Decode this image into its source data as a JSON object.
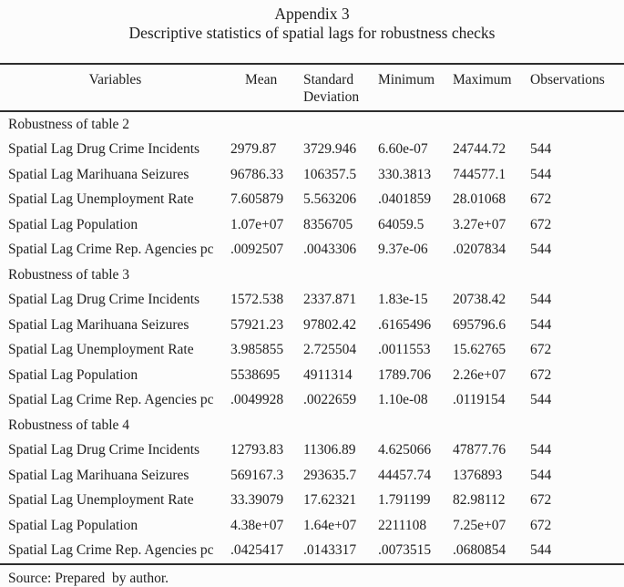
{
  "page": {
    "title": "Appendix 3",
    "subtitle": "Descriptive statistics of spatial lags for robustness checks",
    "source_note": "Source: Prepared  by author."
  },
  "table": {
    "columns": [
      "Variables",
      "Mean",
      "Standard Deviation",
      "Minimum",
      "Maximum",
      "Observations"
    ],
    "sections": [
      {
        "label": "Robustness of table 2",
        "rows": [
          {
            "variable": "Spatial Lag Drug Crime Incidents",
            "mean": "2979.87",
            "sd": "3729.946",
            "min": "6.60e-07",
            "max": "24744.72",
            "obs": "544"
          },
          {
            "variable": "Spatial Lag Marihuana Seizures",
            "mean": "96786.33",
            "sd": "106357.5",
            "min": "330.3813",
            "max": "744577.1",
            "obs": "544"
          },
          {
            "variable": "Spatial Lag Unemployment Rate",
            "mean": "7.605879",
            "sd": "5.563206",
            "min": ".0401859",
            "max": "28.01068",
            "obs": "672"
          },
          {
            "variable": "Spatial Lag Population",
            "mean": "1.07e+07",
            "sd": "8356705",
            "min": "64059.5",
            "max": "3.27e+07",
            "obs": "672"
          },
          {
            "variable": "Spatial Lag Crime Rep. Agencies pc",
            "mean": ".0092507",
            "sd": ".0043306",
            "min": "9.37e-06",
            "max": ".0207834",
            "obs": "544"
          }
        ]
      },
      {
        "label": "Robustness of table 3",
        "rows": [
          {
            "variable": "Spatial Lag Drug Crime Incidents",
            "mean": "1572.538",
            "sd": "2337.871",
            "min": "1.83e-15",
            "max": "20738.42",
            "obs": "544"
          },
          {
            "variable": "Spatial Lag Marihuana Seizures",
            "mean": "57921.23",
            "sd": "97802.42",
            "min": ".6165496",
            "max": "695796.6",
            "obs": "544"
          },
          {
            "variable": "Spatial Lag Unemployment Rate",
            "mean": "3.985855",
            "sd": "2.725504",
            "min": ".0011553",
            "max": "15.62765",
            "obs": "672"
          },
          {
            "variable": "Spatial Lag Population",
            "mean": "5538695",
            "sd": "4911314",
            "min": "1789.706",
            "max": "2.26e+07",
            "obs": "672"
          },
          {
            "variable": "Spatial Lag Crime Rep. Agencies pc",
            "mean": ".0049928",
            "sd": ".0022659",
            "min": "1.10e-08",
            "max": ".0119154",
            "obs": "544"
          }
        ]
      },
      {
        "label": "Robustness of table 4",
        "rows": [
          {
            "variable": "Spatial Lag Drug Crime Incidents",
            "mean": "12793.83",
            "sd": "11306.89",
            "min": "4.625066",
            "max": "47877.76",
            "obs": "544"
          },
          {
            "variable": "Spatial Lag Marihuana Seizures",
            "mean": "569167.3",
            "sd": "293635.7",
            "min": "44457.74",
            "max": "1376893",
            "obs": "544"
          },
          {
            "variable": "Spatial Lag Unemployment Rate",
            "mean": "33.39079",
            "sd": "17.62321",
            "min": "1.791199",
            "max": "82.98112",
            "obs": "672"
          },
          {
            "variable": "Spatial Lag Population",
            "mean": "4.38e+07",
            "sd": "1.64e+07",
            "min": "2211108",
            "max": "7.25e+07",
            "obs": "672"
          },
          {
            "variable": "Spatial Lag Crime Rep. Agencies pc",
            "mean": ".0425417",
            "sd": ".0143317",
            "min": ".0073515",
            "max": ".0680854",
            "obs": "544"
          }
        ]
      }
    ]
  }
}
